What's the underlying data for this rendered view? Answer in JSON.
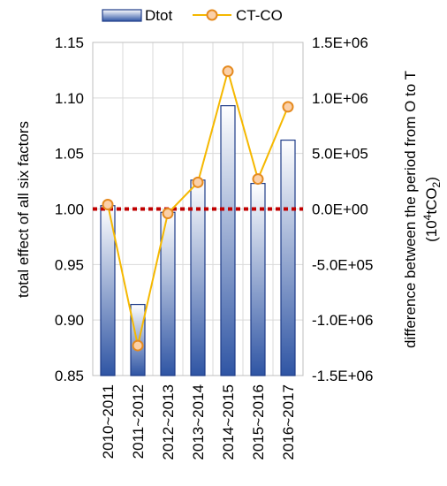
{
  "chart_data": {
    "type": "bar+line",
    "categories": [
      "2010~2011",
      "2011~2012",
      "2012~2013",
      "2013~2014",
      "2014~2015",
      "2015~2016",
      "2016~2017"
    ],
    "series": [
      {
        "name": "Dtot",
        "type": "bar",
        "axis": "left",
        "values": [
          1.003,
          0.914,
          0.997,
          1.026,
          1.093,
          1.023,
          1.062
        ]
      },
      {
        "name": "CT-CO",
        "type": "line",
        "axis": "right",
        "values": [
          40000,
          -1230000,
          -40000,
          240000,
          1240000,
          270000,
          920000
        ]
      }
    ],
    "left_axis": {
      "label": "total effect of all six factors",
      "min": 0.85,
      "max": 1.15,
      "step": 0.05,
      "ticks": [
        "0.85",
        "0.90",
        "0.95",
        "1.00",
        "1.05",
        "1.10",
        "1.15"
      ]
    },
    "right_axis": {
      "label_line1": "difference between the period from O to T",
      "label_line2_pre": "(10",
      "label_line2_sup": "4",
      "label_line2_mid": "tCO",
      "label_line2_sub": "2",
      "label_line2_post": ")",
      "min": -1500000,
      "max": 1500000,
      "step": 500000,
      "ticks": [
        "-1.5E+06",
        "-1.0E+06",
        "-5.0E+05",
        "0.0E+00",
        "5.0E+05",
        "1.0E+06",
        "1.5E+06"
      ]
    },
    "reference_line": {
      "value": 1.0,
      "axis": "left",
      "style": "dotted",
      "color": "#c00000"
    },
    "legend": {
      "position": "top"
    },
    "grid": true,
    "colors": {
      "bar_fill_top": "#ffffff",
      "bar_fill_bottom": "#2f55a4",
      "bar_stroke": "#1f3c88",
      "line": "#f5b800",
      "marker_fill": "#fbd0a8",
      "marker_stroke": "#e58a1f",
      "grid": "#d9d9d9",
      "reference": "#c00000"
    }
  }
}
